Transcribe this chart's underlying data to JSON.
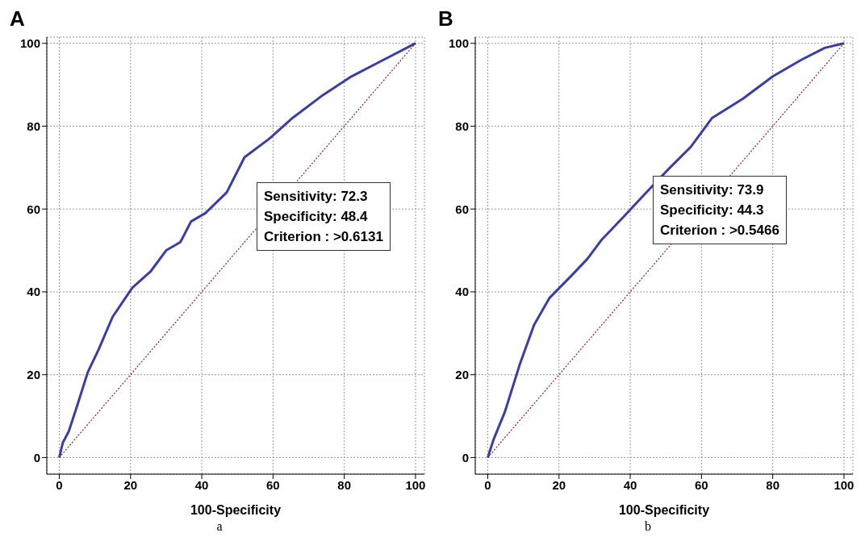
{
  "chart_data": [
    {
      "type": "line",
      "title": "A",
      "xlabel": "100-Specificity",
      "xlim": [
        -3.5,
        102.5
      ],
      "ylim": [
        -4,
        101.5
      ],
      "xticks": [
        0,
        20,
        40,
        60,
        80,
        100
      ],
      "yticks": [
        0,
        20,
        40,
        60,
        80,
        100
      ],
      "grid": true,
      "marker": "none",
      "annotations": [
        "Sensitivity: 72.3",
        "Specificity: 48.4",
        "Criterion : >0.6131",
        "a"
      ],
      "series": [
        {
          "color": "#3a3da6",
          "line_style": "solid",
          "x": [
            0,
            1,
            2.7,
            5.2,
            8,
            11,
            15,
            20.5,
            25.7,
            30,
            34,
            37,
            41,
            47,
            52,
            59,
            65.5,
            74,
            82,
            91,
            100
          ],
          "values": [
            0,
            3.6,
            6.4,
            13,
            20.6,
            26,
            34,
            41,
            45,
            50,
            52,
            57,
            59,
            64,
            72.5,
            77,
            82,
            87.5,
            92,
            96,
            100
          ]
        },
        {
          "color": "#a01818",
          "line_style": "dotted",
          "x": [
            0,
            100
          ],
          "values": [
            0,
            100
          ]
        }
      ]
    },
    {
      "type": "line",
      "title": "B",
      "xlabel": "100-Specificity",
      "xlim": [
        -3.5,
        102.5
      ],
      "ylim": [
        -4,
        101.5
      ],
      "xticks": [
        0,
        20,
        40,
        60,
        80,
        100
      ],
      "yticks": [
        0,
        20,
        40,
        60,
        80,
        100
      ],
      "grid": true,
      "marker": "none",
      "annotations": [
        "Sensitivity: 73.9",
        "Specificity: 44.3",
        "Criterion : >0.5466",
        "b"
      ],
      "series": [
        {
          "color": "#3a3da6",
          "line_style": "solid",
          "x": [
            0,
            1.7,
            4.8,
            9,
            13,
            17.3,
            23.6,
            28,
            32,
            38,
            44.5,
            50.7,
            57,
            63,
            71.6,
            80,
            88,
            94.6,
            100
          ],
          "values": [
            0,
            4.5,
            11,
            22.5,
            32,
            38.5,
            44,
            48,
            52.6,
            58,
            64,
            69.6,
            75,
            82,
            86.6,
            92,
            96,
            98.9,
            100
          ]
        },
        {
          "color": "#a01818",
          "line_style": "dotted",
          "x": [
            0,
            100
          ],
          "values": [
            0,
            100
          ]
        }
      ]
    }
  ]
}
